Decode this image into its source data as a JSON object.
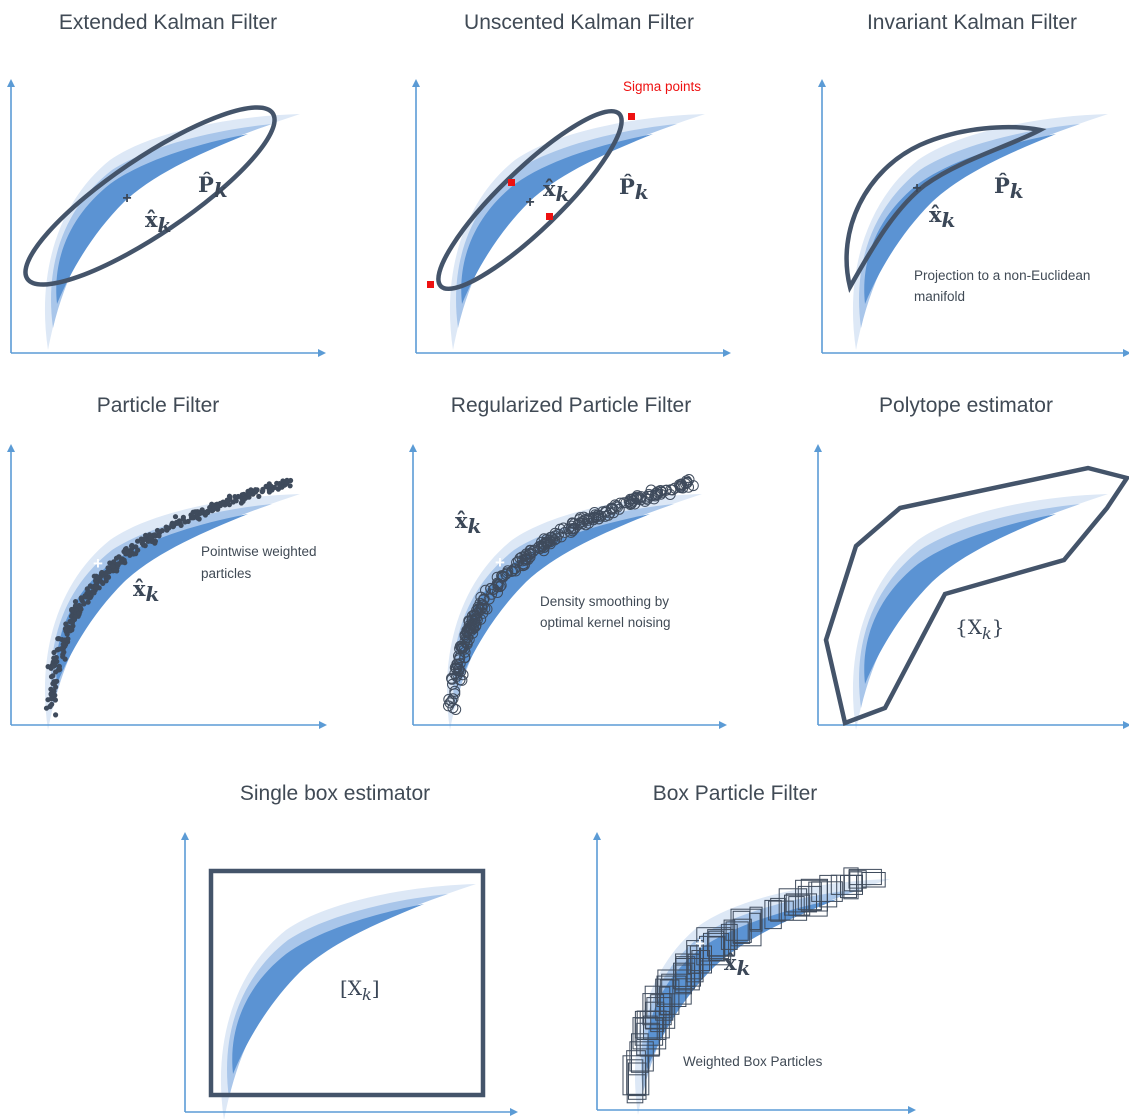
{
  "panels": [
    {
      "title": "Extended Kalman Filter"
    },
    {
      "title": "Unscented Kalman Filter"
    },
    {
      "title": "Invariant Kalman Filter"
    },
    {
      "title": "Particle Filter"
    },
    {
      "title": "Regularized Particle Filter"
    },
    {
      "title": "Polytope estimator"
    },
    {
      "title": "Single box estimator"
    },
    {
      "title": "Box Particle Filter"
    }
  ],
  "annotations": {
    "sigma_points": "Sigma points",
    "projection_line1": "Projection to a non-Euclidean",
    "projection_line2": "manifold",
    "pointwise_line1": "Pointwise weighted",
    "pointwise_line2": "particles",
    "density_line1": "Density smoothing by",
    "density_line2": "optimal kernel noising",
    "weighted_box": "Weighted Box Particles"
  },
  "symbols": {
    "x_hat": "x̂",
    "p_hat": "P̂",
    "k": "k",
    "X_curly": "{X",
    "X_curly_close": "}",
    "X_box": "[X",
    "X_box_close": "]"
  },
  "colors": {
    "axis": "#5b9bd5",
    "density_outer": "#dde8f6",
    "density_mid": "#a9c6ea",
    "density_inner": "#5b93d3",
    "estimator": "#44546a",
    "sigma_point": "#ee1111",
    "text": "#404a55"
  }
}
